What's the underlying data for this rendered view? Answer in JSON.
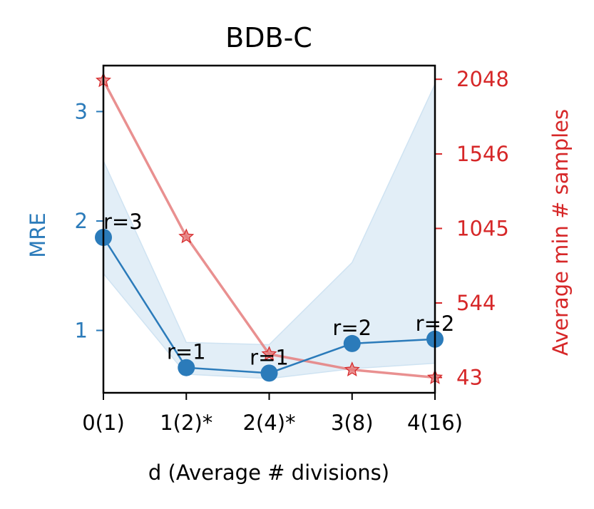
{
  "chart_data": {
    "type": "line",
    "title": "BDB-C",
    "xlabel": "d (Average # divisions)",
    "ylabel_left": "MRE",
    "ylabel_right": "Average min # samples",
    "categories": [
      "0(1)",
      "1(2)*",
      "2(4)*",
      "3(8)",
      "4(16)"
    ],
    "left_ticks": [
      "1",
      "2",
      "3"
    ],
    "right_ticks": [
      "43",
      "544",
      "1045",
      "1546",
      "2048"
    ],
    "left_ylim": [
      0.43,
      3.42
    ],
    "right_ylim": [
      -60,
      2140
    ],
    "colors": {
      "mre": "#2b7bba",
      "band": "#cfe3f2",
      "samples": "#e57c7c",
      "samples_marker": "#d62728",
      "right_axis": "#d62728"
    },
    "series": [
      {
        "name": "MRE",
        "axis": "left",
        "marker": "circle",
        "values": [
          1.85,
          0.66,
          0.61,
          0.88,
          0.92
        ],
        "band_upper": [
          2.55,
          0.89,
          0.87,
          1.62,
          3.25
        ],
        "band_lower": [
          1.52,
          0.6,
          0.56,
          0.65,
          0.7
        ]
      },
      {
        "name": "Average min # samples",
        "axis": "right",
        "marker": "star",
        "values": [
          2040,
          990,
          200,
          95,
          43
        ]
      }
    ],
    "annotations": [
      {
        "text": "r=3",
        "index": 0
      },
      {
        "text": "r=1",
        "index": 1
      },
      {
        "text": "r=1",
        "index": 2
      },
      {
        "text": "r=2",
        "index": 3
      },
      {
        "text": "r=2",
        "index": 4
      }
    ]
  }
}
